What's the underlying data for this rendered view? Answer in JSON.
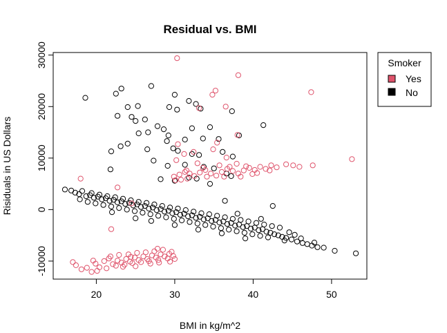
{
  "chart_data": {
    "type": "scatter",
    "title": "Residual vs. BMI",
    "xlabel": "BMI in kg/m^2",
    "ylabel": "Risiduals in US Dollars",
    "xlim": [
      14.5,
      54.5
    ],
    "ylim": [
      -13500,
      30500
    ],
    "x_ticks": [
      20,
      30,
      40,
      50
    ],
    "y_ticks": [
      -10000,
      0,
      10000,
      20000,
      30000
    ],
    "grid": false,
    "legend": {
      "title": "Smoker",
      "placement": "outside-top-right",
      "entries": [
        {
          "label": "Yes",
          "color": "#DF536B"
        },
        {
          "label": "No",
          "color": "#000000"
        }
      ]
    },
    "series": [
      {
        "name": "Yes",
        "color": "#DF536B",
        "marker": "open-circle",
        "points": [
          [
            30.3,
            29400
          ],
          [
            38.1,
            26100
          ],
          [
            47.4,
            22800
          ],
          [
            35.2,
            23100
          ],
          [
            34.8,
            22300
          ],
          [
            36.5,
            20000
          ],
          [
            33.1,
            19700
          ],
          [
            38.0,
            14500
          ],
          [
            52.6,
            9800
          ],
          [
            35.4,
            13000
          ],
          [
            30.4,
            12700
          ],
          [
            31.2,
            10800
          ],
          [
            36.6,
            10100
          ],
          [
            32.4,
            11200
          ],
          [
            34.9,
            11700
          ],
          [
            30.2,
            9600
          ],
          [
            18.0,
            6000
          ],
          [
            22.7,
            4300
          ],
          [
            24.5,
            1200
          ],
          [
            21.9,
            -3800
          ],
          [
            29.9,
            6400
          ],
          [
            30.6,
            6800
          ],
          [
            31.3,
            7300
          ],
          [
            31.9,
            7000
          ],
          [
            32.5,
            6500
          ],
          [
            33.2,
            7200
          ],
          [
            33.9,
            7700
          ],
          [
            34.6,
            7000
          ],
          [
            35.3,
            6600
          ],
          [
            36.0,
            7300
          ],
          [
            36.7,
            7900
          ],
          [
            37.4,
            7500
          ],
          [
            38.1,
            7000
          ],
          [
            38.8,
            7600
          ],
          [
            39.5,
            8100
          ],
          [
            40.2,
            7700
          ],
          [
            40.9,
            8300
          ],
          [
            41.6,
            7900
          ],
          [
            42.3,
            8600
          ],
          [
            43.0,
            8200
          ],
          [
            44.2,
            8800
          ],
          [
            45.1,
            8600
          ],
          [
            45.9,
            8300
          ],
          [
            47.6,
            8600
          ],
          [
            30.8,
            5800
          ],
          [
            31.6,
            6000
          ],
          [
            33.6,
            8100
          ],
          [
            34.1,
            6400
          ],
          [
            35.7,
            8600
          ],
          [
            37.0,
            8300
          ],
          [
            37.9,
            8900
          ],
          [
            39.1,
            8400
          ],
          [
            40.5,
            7100
          ],
          [
            42.1,
            7600
          ],
          [
            30.1,
            5700
          ],
          [
            32.9,
            9000
          ],
          [
            36.3,
            6400
          ],
          [
            38.4,
            6400
          ],
          [
            39.9,
            6900
          ],
          [
            31.5,
            7600
          ],
          [
            17.0,
            -10200
          ],
          [
            17.4,
            -10800
          ],
          [
            18.1,
            -11600
          ],
          [
            18.8,
            -11300
          ],
          [
            19.4,
            -12100
          ],
          [
            19.9,
            -10500
          ],
          [
            20.4,
            -11200
          ],
          [
            21.0,
            -10000
          ],
          [
            21.6,
            -9500
          ],
          [
            22.1,
            -10600
          ],
          [
            22.7,
            -9900
          ],
          [
            23.2,
            -10300
          ],
          [
            23.8,
            -9600
          ],
          [
            24.3,
            -10100
          ],
          [
            24.9,
            -9300
          ],
          [
            25.4,
            -9800
          ],
          [
            26.0,
            -9100
          ],
          [
            26.5,
            -9600
          ],
          [
            27.1,
            -8900
          ],
          [
            27.6,
            -9300
          ],
          [
            28.2,
            -8700
          ],
          [
            28.7,
            -9100
          ],
          [
            29.3,
            -8600
          ],
          [
            29.8,
            -9000
          ],
          [
            20.1,
            -11900
          ],
          [
            21.3,
            -11400
          ],
          [
            22.5,
            -10900
          ],
          [
            23.6,
            -10700
          ],
          [
            24.6,
            -10400
          ],
          [
            25.7,
            -10200
          ],
          [
            26.7,
            -10000
          ],
          [
            27.9,
            -9800
          ],
          [
            29.1,
            -9500
          ],
          [
            22.9,
            -8800
          ],
          [
            24.1,
            -8700
          ],
          [
            25.2,
            -8400
          ],
          [
            26.3,
            -8300
          ],
          [
            27.4,
            -8100
          ],
          [
            28.5,
            -7800
          ],
          [
            29.6,
            -8200
          ],
          [
            23.4,
            -11100
          ],
          [
            25.0,
            -11000
          ],
          [
            26.9,
            -10500
          ],
          [
            28.0,
            -10300
          ],
          [
            29.4,
            -10100
          ],
          [
            30.0,
            -9600
          ],
          [
            19.6,
            -9900
          ],
          [
            21.8,
            -9100
          ],
          [
            24.4,
            -9200
          ],
          [
            27.8,
            -7600
          ]
        ]
      },
      {
        "name": "No",
        "color": "#000000",
        "marker": "open-circle",
        "points": [
          [
            27.0,
            24000
          ],
          [
            23.2,
            23500
          ],
          [
            22.5,
            22500
          ],
          [
            18.6,
            21700
          ],
          [
            30.0,
            22300
          ],
          [
            31.8,
            21100
          ],
          [
            32.7,
            20500
          ],
          [
            24.0,
            19900
          ],
          [
            25.3,
            20100
          ],
          [
            29.3,
            19900
          ],
          [
            30.3,
            19400
          ],
          [
            33.3,
            19600
          ],
          [
            37.3,
            19100
          ],
          [
            24.5,
            18000
          ],
          [
            22.7,
            18200
          ],
          [
            26.2,
            17500
          ],
          [
            25.0,
            17200
          ],
          [
            27.8,
            16200
          ],
          [
            28.6,
            15600
          ],
          [
            32.2,
            15800
          ],
          [
            34.5,
            16000
          ],
          [
            41.3,
            16400
          ],
          [
            25.4,
            14800
          ],
          [
            26.6,
            15000
          ],
          [
            29.2,
            14400
          ],
          [
            29.0,
            13300
          ],
          [
            31.3,
            13600
          ],
          [
            33.6,
            13800
          ],
          [
            35.6,
            13700
          ],
          [
            38.2,
            14400
          ],
          [
            21.9,
            11300
          ],
          [
            23.1,
            12300
          ],
          [
            24.0,
            12800
          ],
          [
            26.5,
            11700
          ],
          [
            29.8,
            11900
          ],
          [
            30.4,
            11400
          ],
          [
            32.2,
            10800
          ],
          [
            33.1,
            10600
          ],
          [
            36.1,
            11200
          ],
          [
            37.4,
            10300
          ],
          [
            27.3,
            9500
          ],
          [
            29.1,
            8500
          ],
          [
            31.3,
            8700
          ],
          [
            33.7,
            8300
          ],
          [
            35.0,
            8000
          ],
          [
            36.6,
            7000
          ],
          [
            21.8,
            7800
          ],
          [
            28.2,
            5900
          ],
          [
            30.0,
            5600
          ],
          [
            31.8,
            6200
          ],
          [
            32.8,
            6000
          ],
          [
            34.5,
            5000
          ],
          [
            37.2,
            6500
          ],
          [
            42.5,
            700
          ],
          [
            36.4,
            1700
          ],
          [
            16.0,
            3900
          ],
          [
            16.8,
            3700
          ],
          [
            17.3,
            3300
          ],
          [
            17.8,
            3000
          ],
          [
            18.2,
            3600
          ],
          [
            18.7,
            2600
          ],
          [
            19.2,
            2800
          ],
          [
            19.7,
            2300
          ],
          [
            20.2,
            2500
          ],
          [
            20.7,
            2000
          ],
          [
            21.2,
            2200
          ],
          [
            21.7,
            1700
          ],
          [
            22.2,
            1900
          ],
          [
            22.7,
            1400
          ],
          [
            23.2,
            1600
          ],
          [
            23.7,
            1100
          ],
          [
            24.2,
            1300
          ],
          [
            24.7,
            800
          ],
          [
            25.2,
            1000
          ],
          [
            25.7,
            500
          ],
          [
            26.2,
            700
          ],
          [
            26.7,
            200
          ],
          [
            27.2,
            400
          ],
          [
            27.7,
            -100
          ],
          [
            28.2,
            100
          ],
          [
            28.7,
            -400
          ],
          [
            29.2,
            -200
          ],
          [
            29.7,
            -700
          ],
          [
            30.2,
            -500
          ],
          [
            30.7,
            -1000
          ],
          [
            31.2,
            -800
          ],
          [
            31.7,
            -1300
          ],
          [
            32.2,
            -1100
          ],
          [
            32.7,
            -1600
          ],
          [
            33.2,
            -1400
          ],
          [
            33.7,
            -1900
          ],
          [
            34.2,
            -1700
          ],
          [
            34.7,
            -2200
          ],
          [
            35.2,
            -2000
          ],
          [
            35.7,
            -2500
          ],
          [
            36.2,
            -2300
          ],
          [
            36.7,
            -2800
          ],
          [
            37.2,
            -2600
          ],
          [
            37.7,
            -3100
          ],
          [
            38.2,
            -2900
          ],
          [
            38.7,
            -3400
          ],
          [
            39.2,
            -3200
          ],
          [
            39.7,
            -3700
          ],
          [
            40.2,
            -3500
          ],
          [
            40.7,
            -4000
          ],
          [
            41.2,
            -3800
          ],
          [
            41.7,
            -4300
          ],
          [
            42.2,
            -4500
          ],
          [
            42.7,
            -4800
          ],
          [
            43.2,
            -5000
          ],
          [
            43.7,
            -5300
          ],
          [
            44.2,
            -5500
          ],
          [
            44.9,
            -5800
          ],
          [
            45.6,
            -6200
          ],
          [
            46.3,
            -6500
          ],
          [
            46.9,
            -6700
          ],
          [
            47.5,
            -7000
          ],
          [
            48.2,
            -7300
          ],
          [
            49.0,
            -7400
          ],
          [
            50.4,
            -8000
          ],
          [
            53.1,
            -8500
          ],
          [
            17.9,
            2000
          ],
          [
            18.9,
            1500
          ],
          [
            19.9,
            1200
          ],
          [
            20.9,
            900
          ],
          [
            21.9,
            600
          ],
          [
            22.9,
            300
          ],
          [
            23.9,
            0
          ],
          [
            24.9,
            -300
          ],
          [
            25.9,
            -600
          ],
          [
            26.9,
            -900
          ],
          [
            27.9,
            -1200
          ],
          [
            28.9,
            -1500
          ],
          [
            29.9,
            -1800
          ],
          [
            30.9,
            -2100
          ],
          [
            31.9,
            -2400
          ],
          [
            32.9,
            -2700
          ],
          [
            33.9,
            -3000
          ],
          [
            34.9,
            -3300
          ],
          [
            35.9,
            -3600
          ],
          [
            36.9,
            -3900
          ],
          [
            37.9,
            -4200
          ],
          [
            38.9,
            -4500
          ],
          [
            39.9,
            -4800
          ],
          [
            40.9,
            -5100
          ],
          [
            41.9,
            -5400
          ],
          [
            19.4,
            3200
          ],
          [
            20.4,
            2900
          ],
          [
            21.4,
            2600
          ],
          [
            22.4,
            2400
          ],
          [
            23.4,
            2100
          ],
          [
            24.4,
            1800
          ],
          [
            25.4,
            1500
          ],
          [
            26.4,
            1300
          ],
          [
            27.4,
            1000
          ],
          [
            28.4,
            700
          ],
          [
            29.4,
            400
          ],
          [
            30.4,
            200
          ],
          [
            31.4,
            -100
          ],
          [
            32.4,
            -400
          ],
          [
            33.4,
            -700
          ],
          [
            34.4,
            -900
          ],
          [
            35.4,
            -1200
          ],
          [
            36.4,
            -1500
          ],
          [
            37.4,
            -1800
          ],
          [
            38.4,
            -2000
          ],
          [
            39.4,
            -2300
          ],
          [
            40.4,
            -2600
          ],
          [
            41.4,
            -2900
          ],
          [
            42.4,
            -3200
          ],
          [
            43.4,
            -3500
          ],
          [
            44.6,
            -4400
          ],
          [
            45.3,
            -4900
          ],
          [
            46.1,
            -5600
          ],
          [
            47.8,
            -6400
          ],
          [
            27.0,
            -2200
          ],
          [
            30.0,
            -3000
          ],
          [
            33.0,
            -3900
          ],
          [
            36.0,
            -4600
          ],
          [
            39.0,
            -5600
          ],
          [
            25.0,
            -1700
          ],
          [
            22.0,
            -500
          ],
          [
            44.0,
            -6000
          ],
          [
            41.0,
            -1800
          ],
          [
            38.0,
            -800
          ]
        ]
      }
    ]
  }
}
